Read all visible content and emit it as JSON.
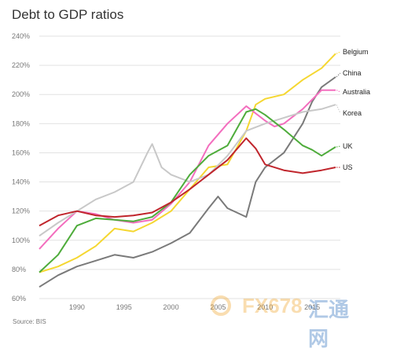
{
  "chart_data": {
    "type": "line",
    "title": "Debt to GDP ratios",
    "source": "Source: BIS",
    "xlabel": "",
    "ylabel": "",
    "xlim": [
      1986,
      2018
    ],
    "ylim": [
      60,
      240
    ],
    "y_ticks": [
      60,
      80,
      100,
      120,
      140,
      160,
      180,
      200,
      220,
      240
    ],
    "y_tick_labels": [
      "60%",
      "80%",
      "100%",
      "120%",
      "140%",
      "160%",
      "180%",
      "200%",
      "220%",
      "240%"
    ],
    "x_ticks": [
      1990,
      1995,
      2000,
      2005,
      2010,
      2015
    ],
    "x_tick_labels": [
      "1990",
      "1995",
      "2000",
      "2005",
      "2010",
      "2015"
    ],
    "grid": "horizontal",
    "legend": "inline labels at right end of lines",
    "series": [
      {
        "name": "Belgium",
        "color": "#f5d731",
        "x": [
          1986,
          1988,
          1990,
          1992,
          1994,
          1996,
          1998,
          2000,
          2002,
          2004,
          2006,
          2008,
          2009,
          2010,
          2012,
          2014,
          2016,
          2017.5
        ],
        "y": [
          78,
          82,
          88,
          96,
          108,
          106,
          112,
          120,
          135,
          150,
          152,
          175,
          193,
          197,
          200,
          210,
          218,
          228
        ]
      },
      {
        "name": "China",
        "color": "#7a7a7a",
        "x": [
          1986,
          1988,
          1990,
          1992,
          1994,
          1996,
          1998,
          2000,
          2002,
          2004,
          2005,
          2006,
          2008,
          2009,
          2010,
          2012,
          2014,
          2015,
          2016,
          2017.5
        ],
        "y": [
          68,
          76,
          82,
          86,
          90,
          88,
          92,
          98,
          105,
          122,
          130,
          122,
          116,
          140,
          150,
          160,
          180,
          195,
          205,
          212
        ]
      },
      {
        "name": "Australia",
        "color": "#f36ebe",
        "x": [
          1986,
          1988,
          1990,
          1992,
          1994,
          1996,
          1998,
          2000,
          2002,
          2004,
          2006,
          2008,
          2010,
          2011,
          2012,
          2014,
          2016,
          2017.5
        ],
        "y": [
          94,
          108,
          120,
          118,
          114,
          112,
          114,
          125,
          140,
          165,
          180,
          192,
          182,
          178,
          180,
          190,
          203,
          203
        ]
      },
      {
        "name": "Korea",
        "color": "#c8c8c8",
        "x": [
          1986,
          1988,
          1990,
          1992,
          1994,
          1996,
          1997.5,
          1998,
          1999,
          2000,
          2002,
          2004,
          2006,
          2008,
          2010,
          2012,
          2014,
          2016,
          2017.5
        ],
        "y": [
          103,
          112,
          120,
          128,
          133,
          140,
          160,
          166,
          150,
          145,
          140,
          145,
          158,
          175,
          180,
          184,
          188,
          190,
          193
        ]
      },
      {
        "name": "UK",
        "color": "#4eac3b",
        "x": [
          1986,
          1988,
          1990,
          1992,
          1994,
          1996,
          1998,
          2000,
          2002,
          2004,
          2006,
          2008,
          2009,
          2010,
          2012,
          2014,
          2015,
          2016,
          2017.5
        ],
        "y": [
          78,
          90,
          110,
          115,
          114,
          113,
          116,
          126,
          145,
          158,
          165,
          188,
          190,
          186,
          176,
          165,
          162,
          158,
          164
        ]
      },
      {
        "name": "US",
        "color": "#c0252c",
        "x": [
          1986,
          1988,
          1990,
          1992,
          1994,
          1996,
          1998,
          2000,
          2002,
          2004,
          2006,
          2008,
          2009,
          2010,
          2012,
          2014,
          2016,
          2017.5
        ],
        "y": [
          110,
          117,
          120,
          117,
          116,
          117,
          119,
          126,
          135,
          145,
          155,
          170,
          163,
          152,
          148,
          146,
          148,
          150
        ]
      }
    ]
  },
  "watermark": {
    "text_fx": "FX678",
    "text_cn": "汇通网"
  }
}
